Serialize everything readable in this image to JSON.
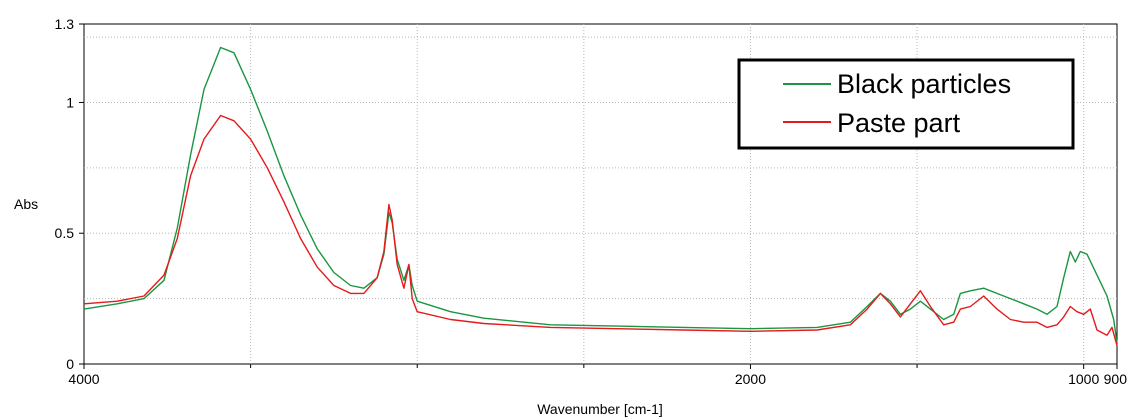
{
  "chart_data": {
    "type": "line",
    "xlabel": "Wavenumber [cm-1]",
    "ylabel": "Abs",
    "xlim": [
      4000,
      900
    ],
    "ylim": [
      0,
      1.3
    ],
    "x_reversed": true,
    "grid": true,
    "legend_position": "top-right",
    "x_ticks": [
      {
        "value": 4000,
        "label": "4000"
      },
      {
        "value": 2000,
        "label": "2000"
      },
      {
        "value": 1000,
        "label": "1000"
      },
      {
        "value": 900,
        "label": "900"
      }
    ],
    "y_ticks": [
      {
        "value": 0,
        "label": "0"
      },
      {
        "value": 0.5,
        "label": "0.5"
      },
      {
        "value": 1,
        "label": "1"
      },
      {
        "value": 1.3,
        "label": "1.3"
      }
    ],
    "series": [
      {
        "name": "Black particles",
        "color": "#1a9641",
        "points": [
          [
            4000,
            0.21
          ],
          [
            3900,
            0.23
          ],
          [
            3820,
            0.25
          ],
          [
            3760,
            0.32
          ],
          [
            3720,
            0.52
          ],
          [
            3680,
            0.8
          ],
          [
            3640,
            1.05
          ],
          [
            3590,
            1.21
          ],
          [
            3550,
            1.19
          ],
          [
            3500,
            1.05
          ],
          [
            3450,
            0.89
          ],
          [
            3400,
            0.72
          ],
          [
            3350,
            0.57
          ],
          [
            3300,
            0.44
          ],
          [
            3250,
            0.35
          ],
          [
            3200,
            0.3
          ],
          [
            3160,
            0.29
          ],
          [
            3120,
            0.33
          ],
          [
            3100,
            0.42
          ],
          [
            3085,
            0.58
          ],
          [
            3075,
            0.54
          ],
          [
            3060,
            0.4
          ],
          [
            3040,
            0.32
          ],
          [
            3025,
            0.38
          ],
          [
            3015,
            0.3
          ],
          [
            3000,
            0.24
          ],
          [
            2900,
            0.2
          ],
          [
            2800,
            0.175
          ],
          [
            2600,
            0.15
          ],
          [
            2400,
            0.145
          ],
          [
            2200,
            0.14
          ],
          [
            2000,
            0.135
          ],
          [
            1800,
            0.14
          ],
          [
            1700,
            0.16
          ],
          [
            1650,
            0.22
          ],
          [
            1610,
            0.27
          ],
          [
            1580,
            0.24
          ],
          [
            1550,
            0.19
          ],
          [
            1520,
            0.21
          ],
          [
            1490,
            0.24
          ],
          [
            1460,
            0.21
          ],
          [
            1420,
            0.17
          ],
          [
            1390,
            0.19
          ],
          [
            1370,
            0.27
          ],
          [
            1340,
            0.28
          ],
          [
            1300,
            0.29
          ],
          [
            1260,
            0.27
          ],
          [
            1220,
            0.25
          ],
          [
            1180,
            0.23
          ],
          [
            1140,
            0.21
          ],
          [
            1110,
            0.19
          ],
          [
            1080,
            0.22
          ],
          [
            1060,
            0.33
          ],
          [
            1040,
            0.43
          ],
          [
            1025,
            0.39
          ],
          [
            1010,
            0.43
          ],
          [
            990,
            0.42
          ],
          [
            960,
            0.34
          ],
          [
            930,
            0.26
          ],
          [
            910,
            0.17
          ],
          [
            900,
            0.08
          ]
        ]
      },
      {
        "name": "Paste part",
        "color": "#e41a1c",
        "points": [
          [
            4000,
            0.23
          ],
          [
            3900,
            0.24
          ],
          [
            3820,
            0.26
          ],
          [
            3760,
            0.34
          ],
          [
            3720,
            0.48
          ],
          [
            3680,
            0.72
          ],
          [
            3640,
            0.86
          ],
          [
            3590,
            0.95
          ],
          [
            3550,
            0.93
          ],
          [
            3500,
            0.86
          ],
          [
            3450,
            0.75
          ],
          [
            3400,
            0.62
          ],
          [
            3350,
            0.48
          ],
          [
            3300,
            0.37
          ],
          [
            3250,
            0.3
          ],
          [
            3200,
            0.27
          ],
          [
            3160,
            0.27
          ],
          [
            3120,
            0.33
          ],
          [
            3100,
            0.43
          ],
          [
            3085,
            0.61
          ],
          [
            3075,
            0.55
          ],
          [
            3060,
            0.38
          ],
          [
            3040,
            0.29
          ],
          [
            3025,
            0.38
          ],
          [
            3015,
            0.25
          ],
          [
            3000,
            0.2
          ],
          [
            2900,
            0.17
          ],
          [
            2800,
            0.155
          ],
          [
            2600,
            0.14
          ],
          [
            2400,
            0.135
          ],
          [
            2200,
            0.13
          ],
          [
            2000,
            0.125
          ],
          [
            1800,
            0.13
          ],
          [
            1700,
            0.15
          ],
          [
            1650,
            0.21
          ],
          [
            1610,
            0.27
          ],
          [
            1580,
            0.23
          ],
          [
            1550,
            0.18
          ],
          [
            1520,
            0.23
          ],
          [
            1490,
            0.28
          ],
          [
            1460,
            0.22
          ],
          [
            1420,
            0.15
          ],
          [
            1390,
            0.16
          ],
          [
            1370,
            0.21
          ],
          [
            1340,
            0.22
          ],
          [
            1300,
            0.26
          ],
          [
            1260,
            0.21
          ],
          [
            1220,
            0.17
          ],
          [
            1180,
            0.16
          ],
          [
            1140,
            0.16
          ],
          [
            1110,
            0.14
          ],
          [
            1080,
            0.15
          ],
          [
            1060,
            0.18
          ],
          [
            1040,
            0.22
          ],
          [
            1020,
            0.2
          ],
          [
            1000,
            0.19
          ],
          [
            980,
            0.21
          ],
          [
            960,
            0.13
          ],
          [
            930,
            0.11
          ],
          [
            915,
            0.14
          ],
          [
            900,
            0.07
          ]
        ]
      }
    ]
  }
}
